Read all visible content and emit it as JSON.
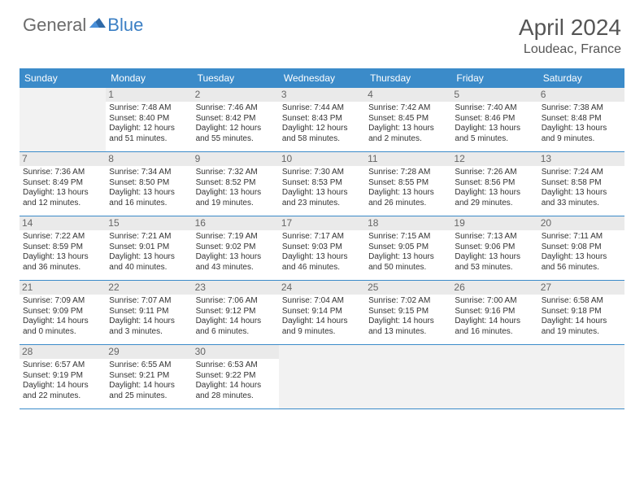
{
  "brand": {
    "part1": "General",
    "part2": "Blue"
  },
  "title": "April 2024",
  "location": "Loudeac, France",
  "day_names": [
    "Sunday",
    "Monday",
    "Tuesday",
    "Wednesday",
    "Thursday",
    "Friday",
    "Saturday"
  ],
  "colors": {
    "header_bg": "#3b8bc9",
    "header_text": "#ffffff",
    "rule": "#3b8bc9",
    "empty_bg": "#f2f2f2",
    "daynum_bg": "#eaeaea",
    "text": "#333333",
    "brand_grey": "#6b6b6b",
    "brand_blue": "#3b7fc4"
  },
  "weeks": [
    [
      {
        "empty": true
      },
      {
        "n": "1",
        "sunrise": "7:48 AM",
        "sunset": "8:40 PM",
        "dl1": "Daylight: 12 hours",
        "dl2": "and 51 minutes."
      },
      {
        "n": "2",
        "sunrise": "7:46 AM",
        "sunset": "8:42 PM",
        "dl1": "Daylight: 12 hours",
        "dl2": "and 55 minutes."
      },
      {
        "n": "3",
        "sunrise": "7:44 AM",
        "sunset": "8:43 PM",
        "dl1": "Daylight: 12 hours",
        "dl2": "and 58 minutes."
      },
      {
        "n": "4",
        "sunrise": "7:42 AM",
        "sunset": "8:45 PM",
        "dl1": "Daylight: 13 hours",
        "dl2": "and 2 minutes."
      },
      {
        "n": "5",
        "sunrise": "7:40 AM",
        "sunset": "8:46 PM",
        "dl1": "Daylight: 13 hours",
        "dl2": "and 5 minutes."
      },
      {
        "n": "6",
        "sunrise": "7:38 AM",
        "sunset": "8:48 PM",
        "dl1": "Daylight: 13 hours",
        "dl2": "and 9 minutes."
      }
    ],
    [
      {
        "n": "7",
        "sunrise": "7:36 AM",
        "sunset": "8:49 PM",
        "dl1": "Daylight: 13 hours",
        "dl2": "and 12 minutes."
      },
      {
        "n": "8",
        "sunrise": "7:34 AM",
        "sunset": "8:50 PM",
        "dl1": "Daylight: 13 hours",
        "dl2": "and 16 minutes."
      },
      {
        "n": "9",
        "sunrise": "7:32 AM",
        "sunset": "8:52 PM",
        "dl1": "Daylight: 13 hours",
        "dl2": "and 19 minutes."
      },
      {
        "n": "10",
        "sunrise": "7:30 AM",
        "sunset": "8:53 PM",
        "dl1": "Daylight: 13 hours",
        "dl2": "and 23 minutes."
      },
      {
        "n": "11",
        "sunrise": "7:28 AM",
        "sunset": "8:55 PM",
        "dl1": "Daylight: 13 hours",
        "dl2": "and 26 minutes."
      },
      {
        "n": "12",
        "sunrise": "7:26 AM",
        "sunset": "8:56 PM",
        "dl1": "Daylight: 13 hours",
        "dl2": "and 29 minutes."
      },
      {
        "n": "13",
        "sunrise": "7:24 AM",
        "sunset": "8:58 PM",
        "dl1": "Daylight: 13 hours",
        "dl2": "and 33 minutes."
      }
    ],
    [
      {
        "n": "14",
        "sunrise": "7:22 AM",
        "sunset": "8:59 PM",
        "dl1": "Daylight: 13 hours",
        "dl2": "and 36 minutes."
      },
      {
        "n": "15",
        "sunrise": "7:21 AM",
        "sunset": "9:01 PM",
        "dl1": "Daylight: 13 hours",
        "dl2": "and 40 minutes."
      },
      {
        "n": "16",
        "sunrise": "7:19 AM",
        "sunset": "9:02 PM",
        "dl1": "Daylight: 13 hours",
        "dl2": "and 43 minutes."
      },
      {
        "n": "17",
        "sunrise": "7:17 AM",
        "sunset": "9:03 PM",
        "dl1": "Daylight: 13 hours",
        "dl2": "and 46 minutes."
      },
      {
        "n": "18",
        "sunrise": "7:15 AM",
        "sunset": "9:05 PM",
        "dl1": "Daylight: 13 hours",
        "dl2": "and 50 minutes."
      },
      {
        "n": "19",
        "sunrise": "7:13 AM",
        "sunset": "9:06 PM",
        "dl1": "Daylight: 13 hours",
        "dl2": "and 53 minutes."
      },
      {
        "n": "20",
        "sunrise": "7:11 AM",
        "sunset": "9:08 PM",
        "dl1": "Daylight: 13 hours",
        "dl2": "and 56 minutes."
      }
    ],
    [
      {
        "n": "21",
        "sunrise": "7:09 AM",
        "sunset": "9:09 PM",
        "dl1": "Daylight: 14 hours",
        "dl2": "and 0 minutes."
      },
      {
        "n": "22",
        "sunrise": "7:07 AM",
        "sunset": "9:11 PM",
        "dl1": "Daylight: 14 hours",
        "dl2": "and 3 minutes."
      },
      {
        "n": "23",
        "sunrise": "7:06 AM",
        "sunset": "9:12 PM",
        "dl1": "Daylight: 14 hours",
        "dl2": "and 6 minutes."
      },
      {
        "n": "24",
        "sunrise": "7:04 AM",
        "sunset": "9:14 PM",
        "dl1": "Daylight: 14 hours",
        "dl2": "and 9 minutes."
      },
      {
        "n": "25",
        "sunrise": "7:02 AM",
        "sunset": "9:15 PM",
        "dl1": "Daylight: 14 hours",
        "dl2": "and 13 minutes."
      },
      {
        "n": "26",
        "sunrise": "7:00 AM",
        "sunset": "9:16 PM",
        "dl1": "Daylight: 14 hours",
        "dl2": "and 16 minutes."
      },
      {
        "n": "27",
        "sunrise": "6:58 AM",
        "sunset": "9:18 PM",
        "dl1": "Daylight: 14 hours",
        "dl2": "and 19 minutes."
      }
    ],
    [
      {
        "n": "28",
        "sunrise": "6:57 AM",
        "sunset": "9:19 PM",
        "dl1": "Daylight: 14 hours",
        "dl2": "and 22 minutes."
      },
      {
        "n": "29",
        "sunrise": "6:55 AM",
        "sunset": "9:21 PM",
        "dl1": "Daylight: 14 hours",
        "dl2": "and 25 minutes."
      },
      {
        "n": "30",
        "sunrise": "6:53 AM",
        "sunset": "9:22 PM",
        "dl1": "Daylight: 14 hours",
        "dl2": "and 28 minutes."
      },
      {
        "empty": true
      },
      {
        "empty": true
      },
      {
        "empty": true
      },
      {
        "empty": true
      }
    ]
  ]
}
